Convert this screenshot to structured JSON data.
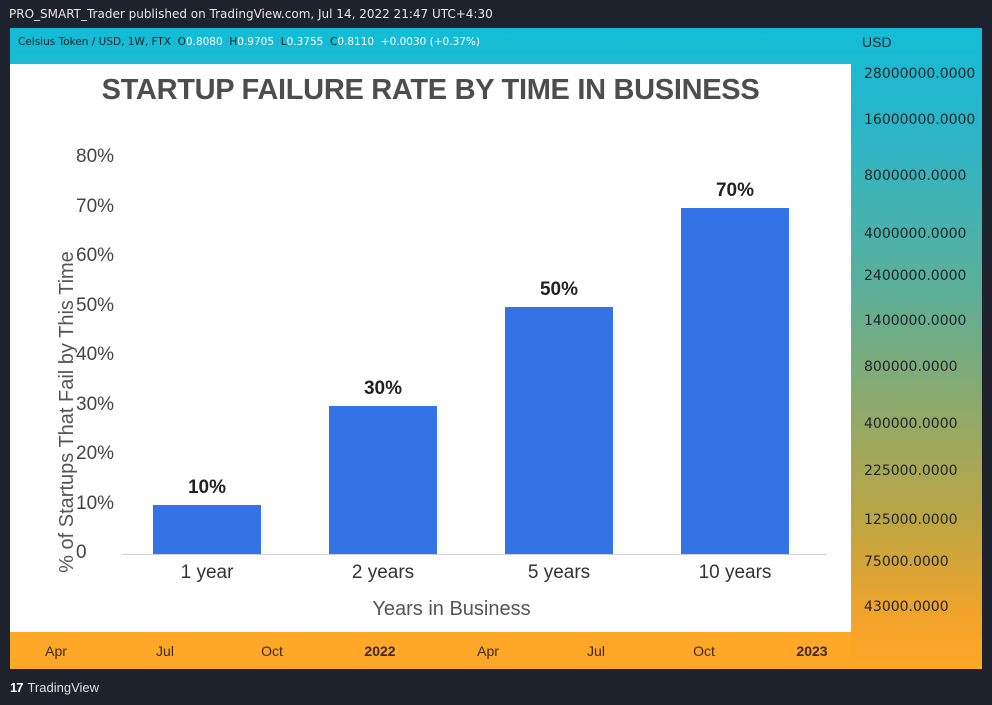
{
  "header": {
    "published_text": "PRO_SMART_Trader published on TradingView.com, Jul 14, 2022 21:47 UTC+4:30"
  },
  "ticker": {
    "symbol": "Celsius Token / USD, 1W, FTX",
    "o_label": "O",
    "o_value": "0.8080",
    "h_label": "H",
    "h_value": "0.9705",
    "l_label": "L",
    "l_value": "0.3755",
    "c_label": "C",
    "c_value": "0.8110",
    "change": "+0.0030 (+0.37%)"
  },
  "price_axis": {
    "currency": "USD",
    "ticks": [
      "28000000.0000",
      "16000000.0000",
      "8000000.0000",
      "4000000.0000",
      "2400000.0000",
      "1400000.0000",
      "800000.0000",
      "400000.0000",
      "225000.0000",
      "125000.0000",
      "75000.0000",
      "43000.0000"
    ]
  },
  "time_axis": {
    "labels": [
      {
        "text": "Apr",
        "bold": false
      },
      {
        "text": "Jul",
        "bold": false
      },
      {
        "text": "Oct",
        "bold": false
      },
      {
        "text": "2022",
        "bold": true
      },
      {
        "text": "Apr",
        "bold": false
      },
      {
        "text": "Jul",
        "bold": false
      },
      {
        "text": "Oct",
        "bold": false
      },
      {
        "text": "2023",
        "bold": true
      }
    ]
  },
  "footer": {
    "brand": "TradingView",
    "logo": "17"
  },
  "colors": {
    "bar": "#3473e6",
    "panel_top": "#12bcd6",
    "panel_bottom": "#ffa726"
  },
  "chart_data": {
    "type": "bar",
    "title": "STARTUP FAILURE RATE BY TIME IN BUSINESS",
    "xlabel": "Years in Business",
    "ylabel": "% of Startups That Fail by This Time",
    "categories": [
      "1 year",
      "2 years",
      "5 years",
      "10 years"
    ],
    "values": [
      10,
      30,
      50,
      70
    ],
    "data_labels": [
      "10%",
      "30%",
      "50%",
      "70%"
    ],
    "yticks": [
      "0",
      "10%",
      "20%",
      "30%",
      "40%",
      "50%",
      "60%",
      "70%",
      "80%"
    ],
    "ylim": [
      0,
      80
    ],
    "grid": false,
    "legend": "none"
  }
}
